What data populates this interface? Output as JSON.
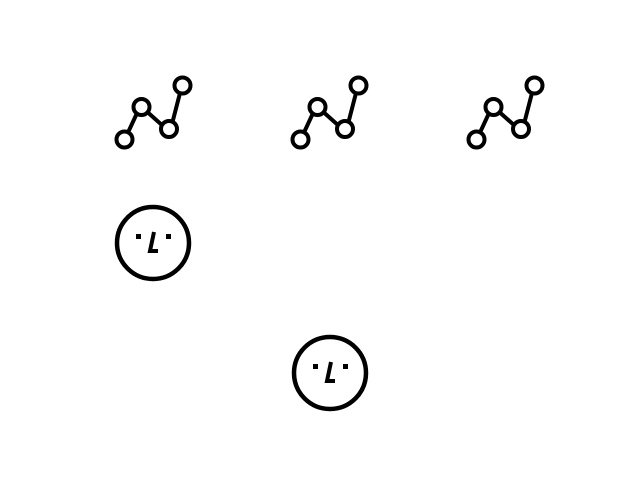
{
  "colors": {
    "background": "#ffffff",
    "stroke": "#000000"
  },
  "icons": [
    {
      "id": "chain-1",
      "name": "node-chain-icon"
    },
    {
      "id": "chain-2",
      "name": "node-chain-icon"
    },
    {
      "id": "chain-3",
      "name": "node-chain-icon"
    },
    {
      "id": "face-1",
      "name": "smiley-face-icon"
    },
    {
      "id": "face-2",
      "name": "smiley-face-icon"
    }
  ]
}
